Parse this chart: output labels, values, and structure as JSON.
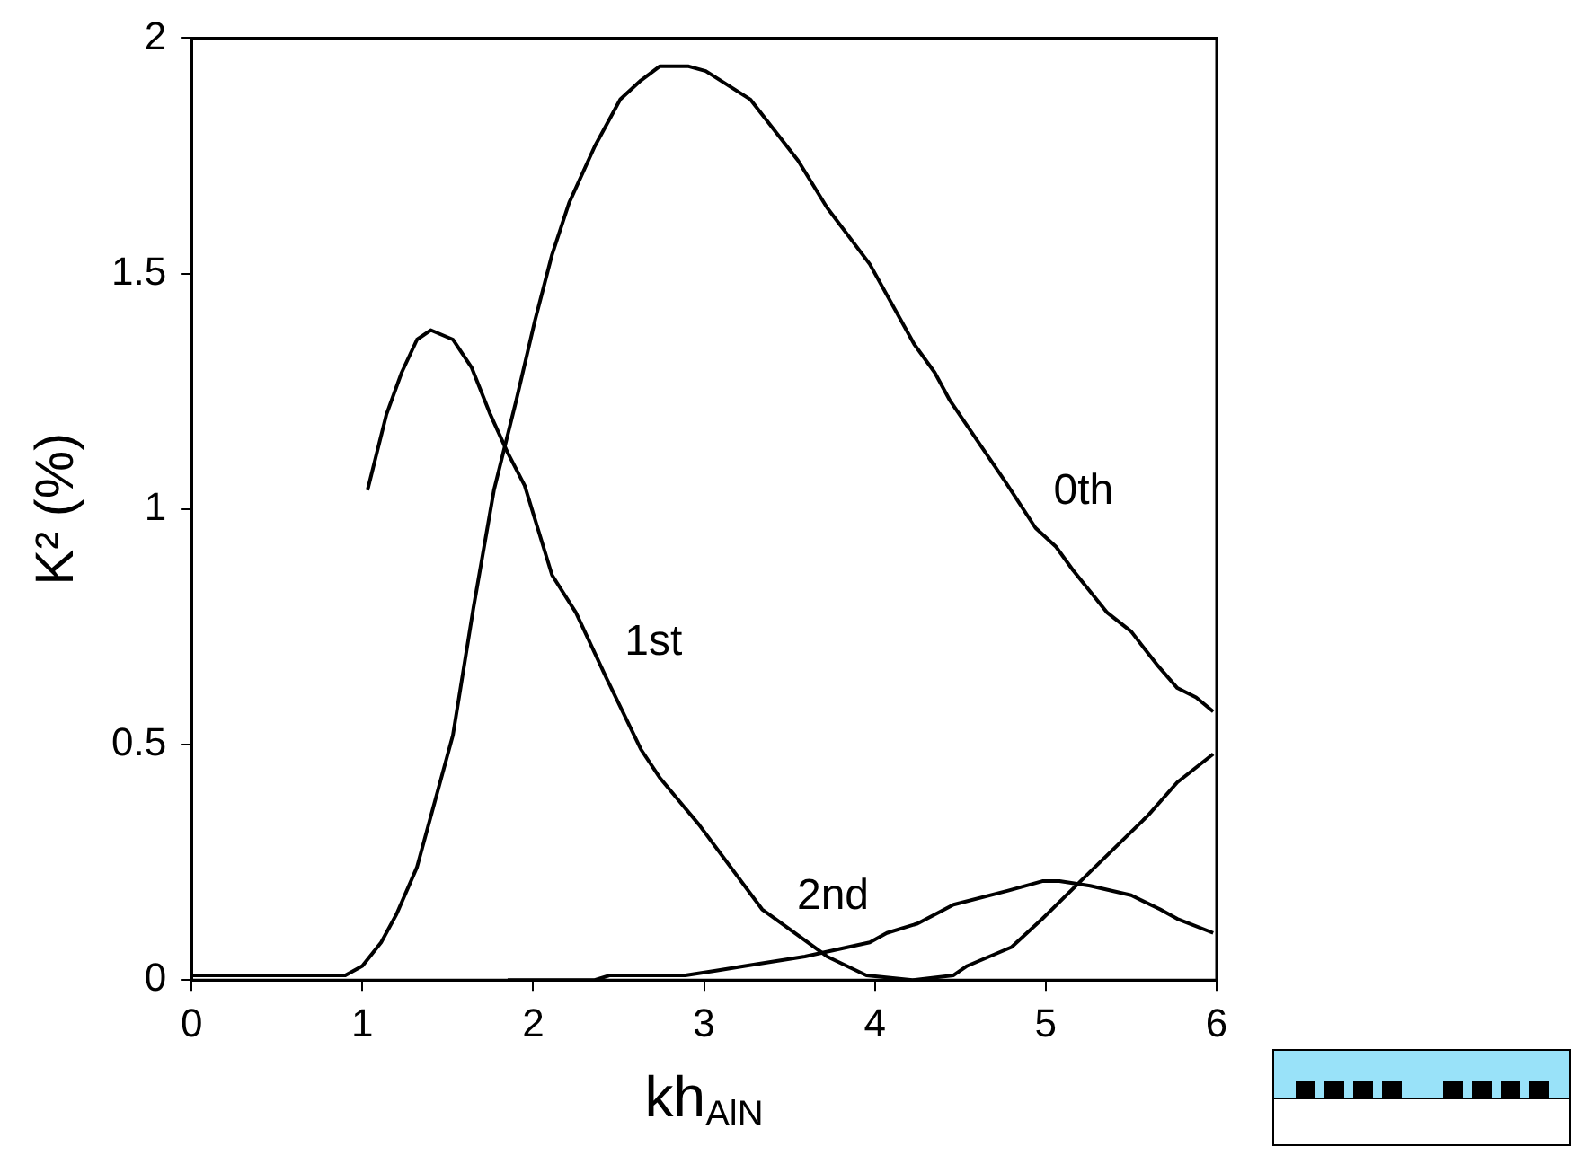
{
  "chart_data": {
    "type": "line",
    "xlabel": "kh$_{AlN}$",
    "ylabel": "K² (%)",
    "xlim": [
      0,
      6
    ],
    "xticks": [
      0,
      1,
      2,
      3,
      4,
      5,
      6
    ],
    "ylim": [
      0,
      2
    ],
    "yticks": [
      0,
      0.5,
      1,
      1.5,
      2
    ],
    "series": [
      {
        "name": "0th",
        "color": "#000000",
        "x": [
          0,
          0.9,
          1.0,
          1.11,
          1.2,
          1.32,
          1.53,
          1.65,
          1.77,
          1.9,
          2.01,
          2.11,
          2.21,
          2.36,
          2.51,
          2.63,
          2.74,
          2.91,
          3.01,
          3.27,
          3.55,
          3.72,
          3.97,
          4.23,
          4.35,
          4.44,
          4.76,
          4.94,
          5.06,
          5.16,
          5.36,
          5.5,
          5.65,
          5.77,
          5.88,
          5.98
        ],
        "values": [
          0.01,
          0.01,
          0.03,
          0.08,
          0.14,
          0.24,
          0.52,
          0.79,
          1.04,
          1.23,
          1.4,
          1.54,
          1.65,
          1.77,
          1.87,
          1.91,
          1.94,
          1.94,
          1.93,
          1.87,
          1.74,
          1.64,
          1.52,
          1.35,
          1.29,
          1.23,
          1.06,
          0.96,
          0.92,
          0.87,
          0.78,
          0.74,
          0.67,
          0.62,
          0.6,
          0.57
        ]
      },
      {
        "name": "1st",
        "color": "#000000",
        "x": [
          1.03,
          1.14,
          1.23,
          1.32,
          1.4,
          1.53,
          1.64,
          1.75,
          1.85,
          1.95,
          2.11,
          2.25,
          2.43,
          2.63,
          2.74,
          2.97,
          3.34,
          3.57,
          3.72,
          3.95,
          4.22,
          4.46,
          4.54,
          4.8,
          4.98,
          5.26,
          5.6,
          5.77,
          5.98
        ],
        "values": [
          1.04,
          1.2,
          1.29,
          1.36,
          1.38,
          1.36,
          1.3,
          1.2,
          1.12,
          1.05,
          0.86,
          0.78,
          0.64,
          0.49,
          0.43,
          0.33,
          0.15,
          0.09,
          0.05,
          0.01,
          0,
          0.01,
          0.03,
          0.07,
          0.13,
          0.23,
          0.35,
          0.42,
          0.48
        ]
      },
      {
        "name": "2nd",
        "color": "#000000",
        "x": [
          1.85,
          2.36,
          2.45,
          2.89,
          3.07,
          3.24,
          3.59,
          3.97,
          4.07,
          4.25,
          4.46,
          4.78,
          4.98,
          5.08,
          5.26,
          5.5,
          5.67,
          5.77,
          5.98
        ],
        "values": [
          0,
          0,
          0.01,
          0.01,
          0.02,
          0.03,
          0.05,
          0.08,
          0.1,
          0.12,
          0.16,
          0.19,
          0.21,
          0.21,
          0.2,
          0.18,
          0.15,
          0.13,
          0.1
        ]
      }
    ]
  }
}
